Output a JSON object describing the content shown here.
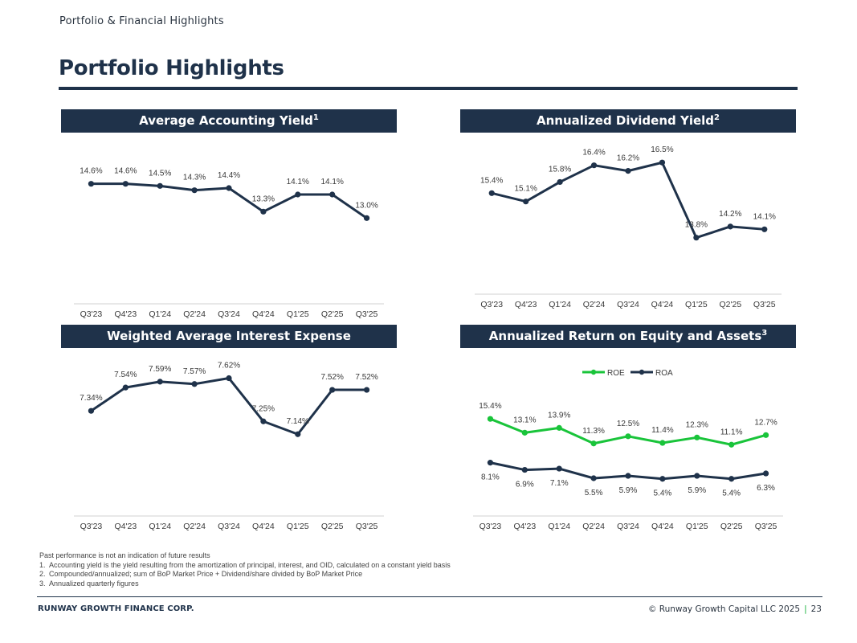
{
  "header": {
    "section": "Portfolio & Financial Highlights",
    "title": "Portfolio Highlights"
  },
  "colors": {
    "navy": "#1f324a",
    "green": "#19c43a",
    "axis": "#d0d0d0"
  },
  "panels": [
    {
      "title": "Average Accounting Yield",
      "sup": "1"
    },
    {
      "title": "Annualized Dividend Yield",
      "sup": "2"
    },
    {
      "title": "Weighted Average Interest Expense",
      "sup": ""
    },
    {
      "title": "Annualized Return on Equity and Assets",
      "sup": "3"
    }
  ],
  "chart_data": [
    {
      "type": "line",
      "title": "Average Accounting Yield",
      "categories": [
        "Q3'23",
        "Q4'23",
        "Q1'24",
        "Q2'24",
        "Q3'24",
        "Q4'24",
        "Q1'25",
        "Q2'25",
        "Q3'25"
      ],
      "series": [
        {
          "name": "Average Accounting Yield",
          "values": [
            14.6,
            14.6,
            14.5,
            14.3,
            14.4,
            13.3,
            14.1,
            14.1,
            13.0
          ],
          "labels": [
            "14.6%",
            "14.6%",
            "14.5%",
            "14.3%",
            "14.4%",
            "13.3%",
            "14.1%",
            "14.1%",
            "13.0%"
          ]
        }
      ],
      "xlabel": "",
      "ylabel": "",
      "ylim": [
        9.0,
        16.5
      ],
      "grid": false,
      "legend": "none"
    },
    {
      "type": "line",
      "title": "Annualized Dividend Yield",
      "categories": [
        "Q3'23",
        "Q4'23",
        "Q1'24",
        "Q2'24",
        "Q3'24",
        "Q4'24",
        "Q1'25",
        "Q2'25",
        "Q3'25"
      ],
      "series": [
        {
          "name": "Annualized Dividend Yield",
          "values": [
            15.4,
            15.1,
            15.8,
            16.4,
            16.2,
            16.5,
            13.8,
            14.2,
            14.1
          ],
          "labels": [
            "15.4%",
            "15.1%",
            "15.8%",
            "16.4%",
            "16.2%",
            "16.5%",
            "13.8%",
            "14.2%",
            "14.1%"
          ]
        }
      ],
      "xlabel": "",
      "ylabel": "",
      "ylim": [
        12.0,
        17.2
      ],
      "grid": false,
      "legend": "none"
    },
    {
      "type": "line",
      "title": "Weighted Average Interest Expense",
      "categories": [
        "Q3'23",
        "Q4'23",
        "Q1'24",
        "Q2'24",
        "Q3'24",
        "Q4'24",
        "Q1'25",
        "Q2'25",
        "Q3'25"
      ],
      "series": [
        {
          "name": "Weighted Average Interest Expense",
          "values": [
            7.34,
            7.54,
            7.59,
            7.57,
            7.62,
            7.25,
            7.14,
            7.52,
            7.52
          ],
          "labels": [
            "7.34%",
            "7.54%",
            "7.59%",
            "7.57%",
            "7.62%",
            "7.25%",
            "7.14%",
            "7.52%",
            "7.52%"
          ]
        }
      ],
      "xlabel": "",
      "ylabel": "",
      "ylim": [
        6.88,
        7.72
      ],
      "grid": false,
      "legend": "none"
    },
    {
      "type": "line",
      "title": "Annualized Return on Equity and Assets",
      "categories": [
        "Q3'23",
        "Q4'23",
        "Q1'24",
        "Q2'24",
        "Q3'24",
        "Q4'24",
        "Q1'25",
        "Q2'25",
        "Q3'25"
      ],
      "series": [
        {
          "name": "ROE",
          "values": [
            15.4,
            13.1,
            13.9,
            11.3,
            12.5,
            11.4,
            12.3,
            11.1,
            12.7
          ],
          "labels": [
            "15.4%",
            "13.1%",
            "13.9%",
            "11.3%",
            "12.5%",
            "11.4%",
            "12.3%",
            "11.1%",
            "12.7%"
          ]
        },
        {
          "name": "ROA",
          "values": [
            8.1,
            6.9,
            7.1,
            5.5,
            5.9,
            5.4,
            5.9,
            5.4,
            6.3
          ],
          "labels": [
            "8.1%",
            "6.9%",
            "7.1%",
            "5.5%",
            "5.9%",
            "5.4%",
            "5.9%",
            "5.4%",
            "6.3%"
          ]
        }
      ],
      "xlabel": "",
      "ylabel": "",
      "ylim": [
        0,
        22
      ],
      "grid": false,
      "legend": "top-center"
    }
  ],
  "footnotes": {
    "intro": "Past performance is not an indication of future results",
    "items": [
      {
        "num": "1.",
        "text": "Accounting yield is the yield resulting from the amortization of principal, interest, and OID, calculated on a constant yield basis"
      },
      {
        "num": "2.",
        "text": "Compounded/annualized; sum of BoP Market Price + Dividend/share divided by BoP Market Price"
      },
      {
        "num": "3.",
        "text": "Annualized quarterly figures"
      }
    ]
  },
  "footer": {
    "brand": "RUNWAY GROWTH FINANCE CORP.",
    "copyright": "© Runway Growth Capital LLC 2025",
    "separator": "|",
    "page": "23"
  }
}
